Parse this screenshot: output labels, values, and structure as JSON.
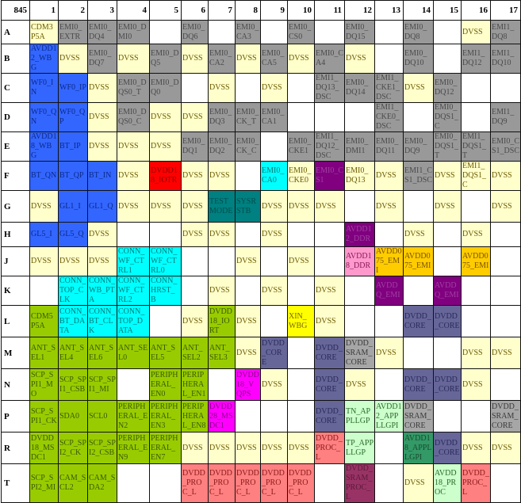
{
  "corner": "845",
  "columns": [
    "1",
    "2",
    "3",
    "4",
    "5",
    "6",
    "7",
    "8",
    "9",
    "10",
    "11",
    "12",
    "13",
    "14",
    "15",
    "16",
    "17"
  ],
  "colors": {
    "w": "#ffffff",
    "y": "#ffffcc",
    "g": "#999999",
    "g2": "#a6a6a6",
    "b": "#3366ff",
    "r": "#ff0000",
    "c": "#00ffff",
    "t": "#008080",
    "p": "#800080",
    "k": "#ff99cc",
    "o": "#ffcc00",
    "l": "#99cc00",
    "s": "#666699",
    "m": "#ff00ff",
    "e": "#ccffcc",
    "d": "#339966",
    "a": "#ff8080",
    "n": "#993366",
    "x": "#ffff00"
  },
  "rows": [
    {
      "label": "A",
      "cells": [
        [
          "CDM3P5A",
          "y"
        ],
        [
          "EMI0_EXTR",
          "g"
        ],
        [
          "EMI0_DQ4",
          "g"
        ],
        [
          "EMI0_DMI0",
          "g"
        ],
        [
          "",
          "w"
        ],
        [
          "EMI0_DQ6",
          "g"
        ],
        [
          "",
          "w"
        ],
        [
          "EMI0_CA3",
          "g"
        ],
        [
          "",
          "w"
        ],
        [
          "EMI0_CS0",
          "g"
        ],
        [
          "",
          "w"
        ],
        [
          "EMI0_DQ15",
          "g"
        ],
        [
          "",
          "w"
        ],
        [
          "EMI0_DQ8",
          "g"
        ],
        [
          "",
          "w"
        ],
        [
          "DVSS",
          "y"
        ],
        [
          "EMI1_DQ8",
          "g"
        ]
      ]
    },
    {
      "label": "B",
      "cells": [
        [
          "AVDD12_WBG",
          "b"
        ],
        [
          "DVSS",
          "y"
        ],
        [
          "EMI0_DQ7",
          "g"
        ],
        [
          "DVSS",
          "y"
        ],
        [
          "EMI0_DQ5",
          "g"
        ],
        [
          "DVSS",
          "y"
        ],
        [
          "EMI0_CA2",
          "g"
        ],
        [
          "DVSS",
          "y"
        ],
        [
          "EMI0_CA5",
          "g"
        ],
        [
          "DVSS",
          "y"
        ],
        [
          "EMI0_CA4",
          "g"
        ],
        [
          "DVSS",
          "y"
        ],
        [
          "",
          "w"
        ],
        [
          "EMI0_DQ10",
          "g"
        ],
        [
          "",
          "w"
        ],
        [
          "EMI1_DQ12",
          "g"
        ],
        [
          "EMI1_DQ10",
          "g"
        ]
      ]
    },
    {
      "label": "C",
      "cells": [
        [
          "WF0_IN",
          "b"
        ],
        [
          "WF0_IP",
          "b"
        ],
        [
          "DVSS",
          "y"
        ],
        [
          "EMI0_DQS0_T",
          "g"
        ],
        [
          "EMI0_DQ0",
          "g"
        ],
        [
          "",
          "w"
        ],
        [
          "DVSS",
          "y"
        ],
        [
          "",
          "w"
        ],
        [
          "DVSS",
          "y"
        ],
        [
          "",
          "w"
        ],
        [
          "EMI1_DQ13_DSC",
          "g"
        ],
        [
          "EMI0_DQ14",
          "g"
        ],
        [
          "EMI1_CKE1_DSC",
          "g"
        ],
        [
          "DVSS",
          "y"
        ],
        [
          "EMI0_DQ12",
          "g"
        ],
        [
          "",
          "w"
        ],
        [
          "",
          "w"
        ]
      ]
    },
    {
      "label": "D",
      "cells": [
        [
          "WF0_QN",
          "b"
        ],
        [
          "WF0_QP",
          "b"
        ],
        [
          "DVSS",
          "y"
        ],
        [
          "EMI0_DQS0_C",
          "g"
        ],
        [
          "DVSS",
          "y"
        ],
        [
          "DVSS",
          "y"
        ],
        [
          "EMI0_DQ3",
          "g"
        ],
        [
          "EMI0_CK_T",
          "g"
        ],
        [
          "EMI0_CA1",
          "g"
        ],
        [
          "",
          "w"
        ],
        [
          "",
          "w"
        ],
        [
          "",
          "w"
        ],
        [
          "EMI1_CKE0_DSC",
          "g"
        ],
        [
          "",
          "w"
        ],
        [
          "EMI0_DQS1_C",
          "g"
        ],
        [
          "",
          "w"
        ],
        [
          "EMI1_DQ9",
          "g"
        ]
      ]
    },
    {
      "label": "E",
      "cells": [
        [
          "AVDD18_WBG",
          "b"
        ],
        [
          "BT_IP",
          "b"
        ],
        [
          "DVSS",
          "y"
        ],
        [
          "DVSS",
          "y"
        ],
        [
          "DVSS",
          "y"
        ],
        [
          "EMI0_DQ1",
          "g"
        ],
        [
          "EMI0_DQ2",
          "g"
        ],
        [
          "EMI0_CK_C",
          "g"
        ],
        [
          "",
          "w"
        ],
        [
          "EMI0_CKE1",
          "g"
        ],
        [
          "EMI1_DQ12_DSC",
          "g"
        ],
        [
          "EMI0_DMI1",
          "g"
        ],
        [
          "EMI0_DQ11",
          "g"
        ],
        [
          "EMI0_DQ9",
          "g"
        ],
        [
          "EMI0_DQS1_T",
          "g"
        ],
        [
          "EMI1_DQS1_T",
          "g"
        ],
        [
          "EMI0_CS1_DSC",
          "g"
        ]
      ]
    },
    {
      "label": "F",
      "cells": [
        [
          "BT_QN",
          "b"
        ],
        [
          "BT_QP",
          "b"
        ],
        [
          "BT_IN",
          "b"
        ],
        [
          "DVSS",
          "y"
        ],
        [
          "DVDD18_IOTR",
          "r"
        ],
        [
          "DVSS",
          "y"
        ],
        [
          "DVSS",
          "y"
        ],
        [
          "",
          "w"
        ],
        [
          "EMI0_CA0",
          "c"
        ],
        [
          "EMI0_CKE0",
          "y"
        ],
        [
          "EMI0_CS1",
          "p"
        ],
        [
          "EMI0_DQ13",
          "y"
        ],
        [
          "DVSS",
          "y"
        ],
        [
          "EMI1_CS1_DSC",
          "g"
        ],
        [
          "DVSS",
          "y"
        ],
        [
          "EMI1_DQS1_C",
          "y"
        ],
        [
          "DVSS",
          "y"
        ]
      ]
    },
    {
      "label": "G",
      "cells": [
        [
          "DVSS",
          "y"
        ],
        [
          "GL1_I",
          "b"
        ],
        [
          "GL1_Q",
          "b"
        ],
        [
          "DVSS",
          "y"
        ],
        [
          "DVSS",
          "y"
        ],
        [
          "DVSS",
          "y"
        ],
        [
          "TESTMODE",
          "t"
        ],
        [
          "SYSRSTB",
          "t"
        ],
        [
          "DVSS",
          "y"
        ],
        [
          "DVSS",
          "y"
        ],
        [
          "DVSS",
          "y"
        ],
        [
          "",
          "w"
        ],
        [
          "DVSS",
          "y"
        ],
        [
          "",
          "w"
        ],
        [
          "DVSS",
          "y"
        ],
        [
          "",
          "w"
        ],
        [
          "DVSS",
          "y"
        ]
      ]
    },
    {
      "label": "H",
      "cells": [
        [
          "GL5_I",
          "b"
        ],
        [
          "GL5_Q",
          "b"
        ],
        [
          "DVSS",
          "y"
        ],
        [
          "",
          "w"
        ],
        [
          "",
          "w"
        ],
        [
          "DVSS",
          "y"
        ],
        [
          "DVSS",
          "y"
        ],
        [
          "",
          "w"
        ],
        [
          "DVSS",
          "y"
        ],
        [
          "",
          "w"
        ],
        [
          "",
          "w"
        ],
        [
          "AVDD12_DDR",
          "p"
        ],
        [
          "",
          "w"
        ],
        [
          "DVSS",
          "y"
        ],
        [
          "",
          "w"
        ],
        [
          "DVSS",
          "y"
        ],
        [
          "",
          "w"
        ]
      ]
    },
    {
      "label": "J",
      "cells": [
        [
          "DVSS",
          "y"
        ],
        [
          "DVSS",
          "y"
        ],
        [
          "DVSS",
          "y"
        ],
        [
          "CONN_WF_CTRL1",
          "c"
        ],
        [
          "CONN_WF_CTRL0",
          "c"
        ],
        [
          "",
          "w"
        ],
        [
          "",
          "w"
        ],
        [
          "DVSS",
          "y"
        ],
        [
          "",
          "w"
        ],
        [
          "DVSS",
          "y"
        ],
        [
          "",
          "w"
        ],
        [
          "AVDD18_DDR",
          "k"
        ],
        [
          "AVDD075_EMI",
          "o"
        ],
        [
          "AVDD075_EMI",
          "o"
        ],
        [
          "",
          "w"
        ],
        [
          "AVDD075_EMI",
          "o"
        ],
        [
          "",
          "w"
        ]
      ]
    },
    {
      "label": "K",
      "cells": [
        [
          "",
          "w"
        ],
        [
          "CONN_TOP_CLK",
          "c"
        ],
        [
          "CONN_WB_PTA",
          "c"
        ],
        [
          "CONN_WF_CTRL2",
          "c"
        ],
        [
          "CONN_HRST_B",
          "c"
        ],
        [
          "",
          "w"
        ],
        [
          "DVSS",
          "y"
        ],
        [
          "",
          "w"
        ],
        [
          "DVSS",
          "y"
        ],
        [
          "",
          "w"
        ],
        [
          "DVSS",
          "y"
        ],
        [
          "",
          "w"
        ],
        [
          "AVDDQ_EMI",
          "p"
        ],
        [
          "",
          "w"
        ],
        [
          "AVDDQ_EMI",
          "p"
        ],
        [
          "",
          "w"
        ],
        [
          "",
          "w"
        ]
      ]
    },
    {
      "label": "L",
      "cells": [
        [
          "CDM5P5A",
          "l"
        ],
        [
          "CONN_BT_DATA",
          "c"
        ],
        [
          "CONN_BT_CLK",
          "c"
        ],
        [
          "CONN_TOP_DATA",
          "c"
        ],
        [
          "",
          "w"
        ],
        [
          "DVSS",
          "y"
        ],
        [
          "DVDD18_IORT",
          "l"
        ],
        [
          "DVSS",
          "y"
        ],
        [
          "",
          "w"
        ],
        [
          "XIN_WBG",
          "x"
        ],
        [
          "DVSS",
          "y"
        ],
        [
          "",
          "w"
        ],
        [
          "",
          "w"
        ],
        [
          "DVDD_CORE",
          "s"
        ],
        [
          "DVDD_CORE",
          "s"
        ],
        [
          "",
          "w"
        ],
        [
          "",
          "w"
        ]
      ]
    },
    {
      "label": "M",
      "cells": [
        [
          "ANT_SEL1",
          "l"
        ],
        [
          "ANT_SEL4",
          "l"
        ],
        [
          "ANT_SEL6",
          "l"
        ],
        [
          "ANT_SEL0",
          "l"
        ],
        [
          "ANT_SEL5",
          "l"
        ],
        [
          "ANT_SEL2",
          "l"
        ],
        [
          "ANT_SEL3",
          "l"
        ],
        [
          "DVSS",
          "y"
        ],
        [
          "DVDD_CORE",
          "s"
        ],
        [
          "",
          "w"
        ],
        [
          "DVDD_CORE",
          "s"
        ],
        [
          "DVDD_SRAM_CORE",
          "g2"
        ],
        [
          "DVSS",
          "y"
        ],
        [
          "",
          "w"
        ],
        [
          "",
          "w"
        ],
        [
          "DVSS",
          "y"
        ],
        [
          "DVSS",
          "y"
        ]
      ]
    },
    {
      "label": "N",
      "cells": [
        [
          "SCP_SPI1_MO",
          "l"
        ],
        [
          "SCP_SPI1_CSB",
          "l"
        ],
        [
          "SCP_SPI1_MI",
          "l"
        ],
        [
          "",
          "w"
        ],
        [
          "PERIPHERAL_EN0",
          "l"
        ],
        [
          "PERIPHERAL_EN1",
          "l"
        ],
        [
          "",
          "w"
        ],
        [
          "DVDD18_VQPS",
          "m"
        ],
        [
          "DVSS",
          "y"
        ],
        [
          "",
          "w"
        ],
        [
          "DVDD_CORE",
          "s"
        ],
        [
          "DVSS",
          "y"
        ],
        [
          "",
          "w"
        ],
        [
          "DVDD_CORE",
          "s"
        ],
        [
          "DVDD_CORE",
          "s"
        ],
        [
          "DVSS",
          "y"
        ],
        [
          "",
          "w"
        ]
      ]
    },
    {
      "label": "P",
      "cells": [
        [
          "SCP_SPI1_CK",
          "l"
        ],
        [
          "SDA0",
          "l"
        ],
        [
          "SCL0",
          "l"
        ],
        [
          "PERIPHERAL_EN2",
          "l"
        ],
        [
          "PERIPHERAL_EN3",
          "l"
        ],
        [
          "PERIPHERAL_EN8",
          "l"
        ],
        [
          "DVDD28_MSDC1",
          "m"
        ],
        [
          "",
          "w"
        ],
        [
          "",
          "w"
        ],
        [
          "",
          "w"
        ],
        [
          "DVDD_CORE",
          "s"
        ],
        [
          "TN_APPLLGP",
          "e"
        ],
        [
          "AVDD12_APPLLGPI",
          "e"
        ],
        [
          "DVDD_SRAM_CORE",
          "g2"
        ],
        [
          "",
          "w"
        ],
        [
          "",
          "w"
        ],
        [
          "DVDD_SRAM_CORE",
          "g2"
        ]
      ]
    },
    {
      "label": "R",
      "cells": [
        [
          "DVDD18_MSDC1",
          "l"
        ],
        [
          "SCP_SPI2_CK",
          "l"
        ],
        [
          "SCP_SPI2_CSB",
          "l"
        ],
        [
          "PERIPHERAL_EN9",
          "l"
        ],
        [
          "PERIPHERAL_EN7",
          "l"
        ],
        [
          "DVSS",
          "y"
        ],
        [
          "DVSS",
          "y"
        ],
        [
          "DVSS",
          "y"
        ],
        [
          "DVSS",
          "y"
        ],
        [
          "DVSS",
          "y"
        ],
        [
          "DVDD_PROC_L",
          "a"
        ],
        [
          "TP_APPLLGP",
          "e"
        ],
        [
          "",
          "w"
        ],
        [
          "AVDD18_APPLLGPI",
          "d"
        ],
        [
          "DVDD_CORE",
          "s"
        ],
        [
          "DVSS",
          "y"
        ],
        [
          "DVSS",
          "y"
        ]
      ]
    },
    {
      "label": "T",
      "cells": [
        [
          "SCP_SPI2_MI",
          "l"
        ],
        [
          "CAM_SCL2",
          "l"
        ],
        [
          "CAM_SDA2",
          "l"
        ],
        [
          "",
          "w"
        ],
        [
          "",
          "w"
        ],
        [
          "DVDD_PROC_L",
          "a"
        ],
        [
          "DVDD_PROC_L",
          "a"
        ],
        [
          "DVDD_PROC_L",
          "a"
        ],
        [
          "DVDD_PROC_L",
          "a"
        ],
        [
          "DVDD_PROC_L",
          "a"
        ],
        [
          "",
          "w"
        ],
        [
          "DVDD_SRAM_PROC_L",
          "n"
        ],
        [
          "",
          "w"
        ],
        [
          "DVSS",
          "y"
        ],
        [
          "AVDD18_PROC",
          "e"
        ],
        [
          "DVDD_PROC_L",
          "a"
        ],
        [
          "",
          "w"
        ]
      ]
    }
  ]
}
